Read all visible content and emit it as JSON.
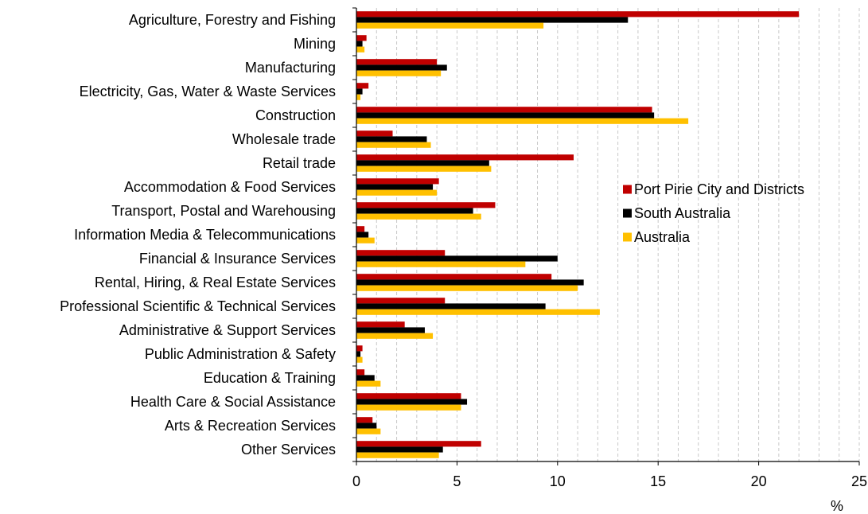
{
  "chart_data": {
    "type": "bar",
    "orientation": "horizontal",
    "categories": [
      "Agriculture, Forestry and Fishing",
      "Mining",
      "Manufacturing",
      "Electricity, Gas, Water & Waste Services",
      "Construction",
      "Wholesale trade",
      "Retail trade",
      "Accommodation & Food Services",
      "Transport, Postal and Warehousing",
      "Information Media & Telecommunications",
      "Financial & Insurance Services",
      "Rental, Hiring, & Real Estate Services",
      "Professional Scientific & Technical Services",
      "Administrative & Support Services",
      "Public Administration & Safety",
      "Education & Training",
      "Health Care & Social Assistance",
      "Arts & Recreation Services",
      "Other Services"
    ],
    "series": [
      {
        "name": "Port Pirie City and Districts",
        "color": "#c00000",
        "values": [
          22.0,
          0.5,
          4.0,
          0.6,
          14.7,
          1.8,
          10.8,
          4.1,
          6.9,
          0.4,
          4.4,
          9.7,
          4.4,
          2.4,
          0.3,
          0.4,
          5.2,
          0.8,
          6.2
        ]
      },
      {
        "name": "South Australia",
        "color": "#000000",
        "values": [
          13.5,
          0.3,
          4.5,
          0.3,
          14.8,
          3.5,
          6.6,
          3.8,
          5.8,
          0.6,
          10.0,
          11.3,
          9.4,
          3.4,
          0.2,
          0.9,
          5.5,
          1.0,
          4.3
        ]
      },
      {
        "name": "Australia",
        "color": "#ffc000",
        "values": [
          9.3,
          0.4,
          4.2,
          0.2,
          16.5,
          3.7,
          6.7,
          4.0,
          6.2,
          0.9,
          8.4,
          11.0,
          12.1,
          3.8,
          0.3,
          1.2,
          5.2,
          1.2,
          4.1
        ]
      }
    ],
    "x_ticks": [
      "0",
      "5",
      "10",
      "15",
      "20",
      "25"
    ],
    "xlim": [
      0,
      25
    ],
    "xlabel": "%",
    "grid": "vertical dashed lines at every 1 unit",
    "legend_position": "right-middle"
  }
}
